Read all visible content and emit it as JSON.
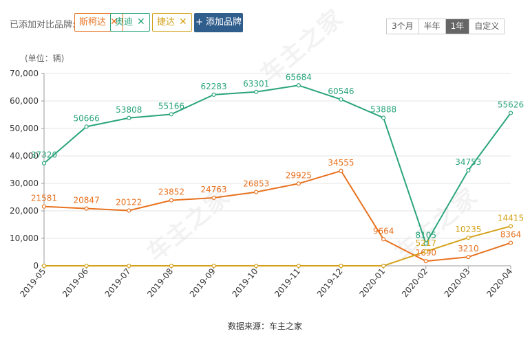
{
  "toolbar": {
    "compare_label": "已添加对比品牌:",
    "brands": [
      {
        "label": "斯柯达",
        "color": "#e8711e",
        "close_icon": "close-icon"
      },
      {
        "label": "奥迪",
        "color": "#2aa57a",
        "close_icon": "close-icon"
      },
      {
        "label": "捷达",
        "color": "#d4a21a",
        "close_icon": "close-icon"
      }
    ],
    "add_brand_label": "+ 添加品牌",
    "ranges": [
      "3个月",
      "半年",
      "1年",
      "自定义"
    ],
    "active_range": "1年"
  },
  "watermark_text": "车主之家",
  "chart_data": {
    "type": "line",
    "unit_label": "(单位：辆)",
    "categories": [
      "2019-05",
      "2019-06",
      "2019-07",
      "2019-08",
      "2019-09",
      "2019-10",
      "2019-11",
      "2019-12",
      "2020-01",
      "2020-02",
      "2020-03",
      "2020-04"
    ],
    "ylim": [
      0,
      70000
    ],
    "yticks": [
      "0",
      "10,000",
      "20,000",
      "30,000",
      "40,000",
      "50,000",
      "60,000",
      "70,000"
    ],
    "grid": true,
    "series": [
      {
        "name": "奥迪",
        "color": "#2aa57a",
        "values": [
          37320,
          50666,
          53808,
          55166,
          62283,
          63301,
          65684,
          60546,
          53888,
          8105,
          34753,
          55626
        ],
        "labels": [
          "37320",
          "50666",
          "53808",
          "55166",
          "62283",
          "63301",
          "65684",
          "60546",
          "53888",
          "8105",
          "34753",
          "55626"
        ]
      },
      {
        "name": "斯柯达",
        "color": "#e8711e",
        "values": [
          21581,
          20847,
          20122,
          23852,
          24763,
          26853,
          29925,
          34555,
          9664,
          1690,
          3210,
          8364
        ],
        "labels": [
          "21581",
          "20847",
          "20122",
          "23852",
          "24763",
          "26853",
          "29925",
          "34555",
          "9664",
          "1690",
          "3210",
          "8364"
        ]
      },
      {
        "name": "捷达",
        "color": "#d4a21a",
        "values": [
          0,
          0,
          0,
          0,
          0,
          0,
          0,
          0,
          0,
          5217,
          10235,
          14415
        ],
        "labels": [
          "",
          "",
          "",
          "",
          "",
          "",
          "",
          "",
          "",
          "5217",
          "10235",
          "14415"
        ]
      }
    ]
  },
  "source_text": "数据来源：车主之家"
}
